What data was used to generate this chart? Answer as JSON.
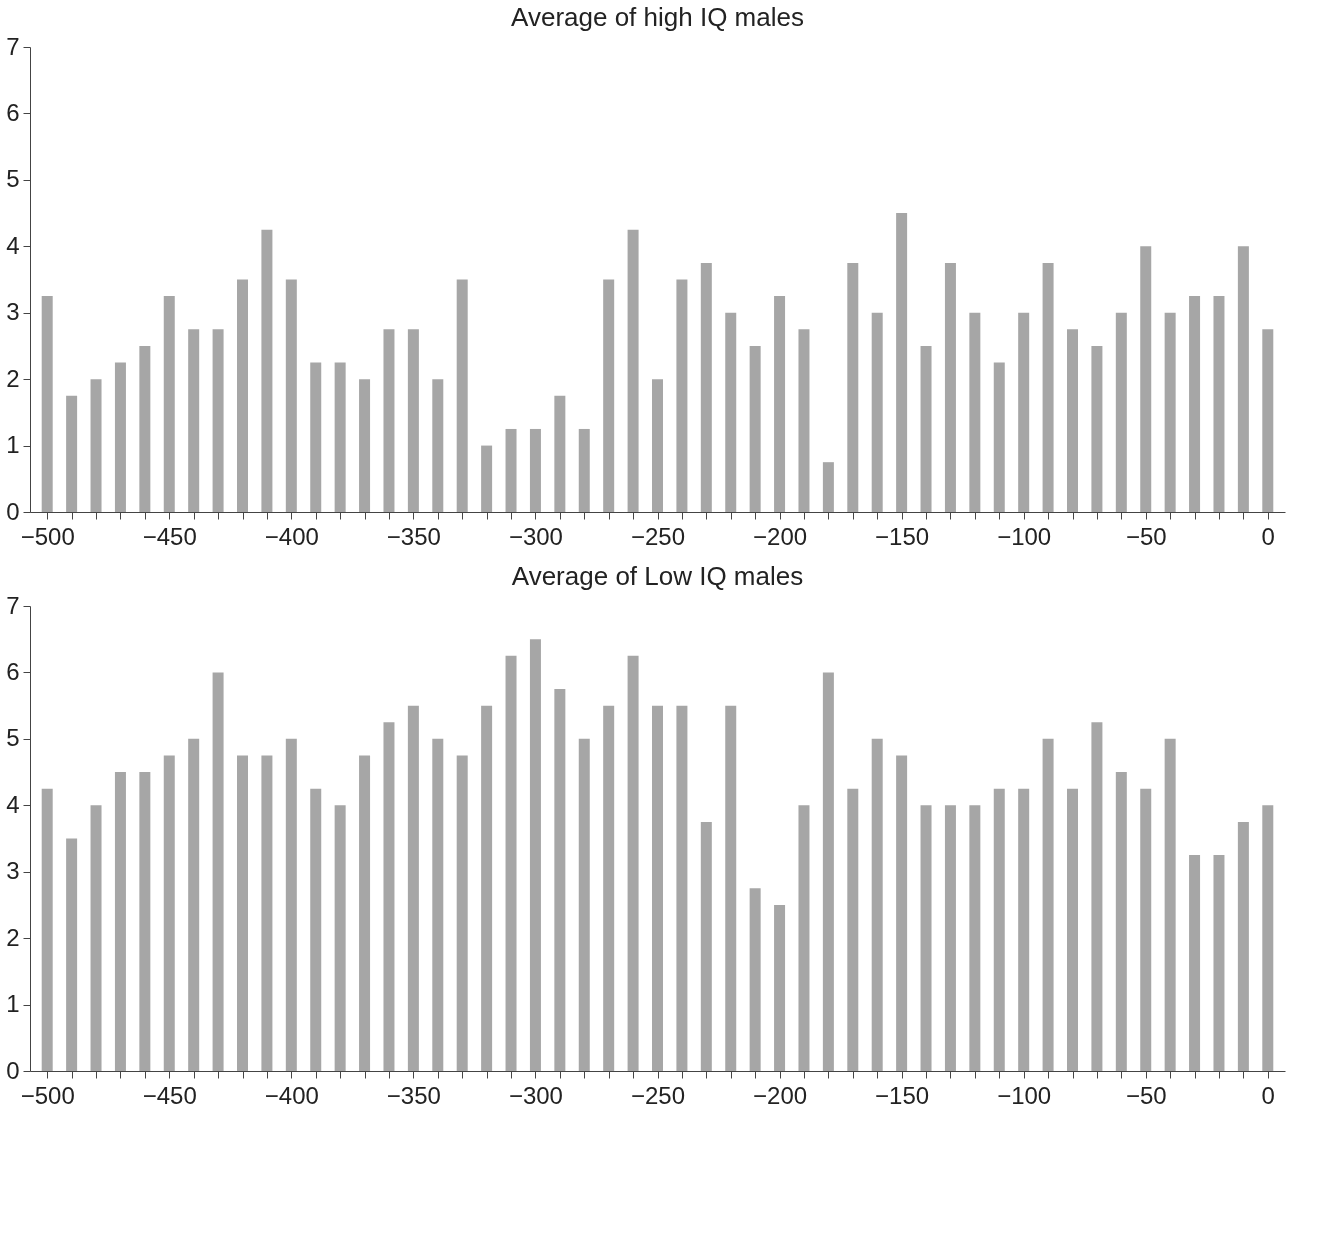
{
  "chart_data": [
    {
      "type": "bar",
      "title": "Average of high IQ males",
      "x": [
        -500,
        -490,
        -480,
        -470,
        -460,
        -450,
        -440,
        -430,
        -420,
        -410,
        -400,
        -390,
        -380,
        -370,
        -360,
        -350,
        -340,
        -330,
        -320,
        -310,
        -300,
        -290,
        -280,
        -270,
        -260,
        -250,
        -240,
        -230,
        -220,
        -210,
        -200,
        -190,
        -180,
        -170,
        -160,
        -150,
        -140,
        -130,
        -120,
        -110,
        -100,
        -90,
        -80,
        -70,
        -60,
        -50,
        -40,
        -30,
        -20,
        -10,
        0
      ],
      "series": [
        {
          "color": "#a6a6a6",
          "values": [
            3.25,
            1.75,
            2,
            2.25,
            2.5,
            3.25,
            2.75,
            2.75,
            3.5,
            4.25,
            3.5,
            2.25,
            2.25,
            2,
            2.75,
            2.75,
            2,
            3.5,
            1,
            1.25,
            1.25,
            1.75,
            1.25,
            3.5,
            4.25,
            2,
            3.5,
            3.75,
            3,
            2.5,
            3.25,
            2.75,
            0.75,
            3.75,
            3,
            4.5,
            2.5,
            3.75,
            3,
            2.25,
            3,
            3.75,
            2.75,
            2.5,
            3,
            4,
            3,
            3.25,
            3.25,
            4,
            2.75
          ]
        }
      ],
      "xlim": [
        -505,
        5
      ],
      "ylim": [
        0,
        7
      ],
      "yticks": [
        0,
        1,
        2,
        3,
        4,
        5,
        6,
        7
      ],
      "xticks": [
        {
          "value": -500,
          "label": "−500"
        },
        {
          "value": -490,
          "label": null
        },
        {
          "value": -480,
          "label": null
        },
        {
          "value": -470,
          "label": null
        },
        {
          "value": -460,
          "label": null
        },
        {
          "value": -450,
          "label": "−450"
        },
        {
          "value": -440,
          "label": null
        },
        {
          "value": -430,
          "label": null
        },
        {
          "value": -420,
          "label": null
        },
        {
          "value": -410,
          "label": null
        },
        {
          "value": -400,
          "label": "−400"
        },
        {
          "value": -390,
          "label": null
        },
        {
          "value": -380,
          "label": null
        },
        {
          "value": -370,
          "label": null
        },
        {
          "value": -360,
          "label": null
        },
        {
          "value": -350,
          "label": "−350"
        },
        {
          "value": -340,
          "label": null
        },
        {
          "value": -330,
          "label": null
        },
        {
          "value": -320,
          "label": null
        },
        {
          "value": -310,
          "label": null
        },
        {
          "value": -300,
          "label": "−300"
        },
        {
          "value": -290,
          "label": null
        },
        {
          "value": -280,
          "label": null
        },
        {
          "value": -270,
          "label": null
        },
        {
          "value": -260,
          "label": null
        },
        {
          "value": -250,
          "label": "−250"
        },
        {
          "value": -240,
          "label": null
        },
        {
          "value": -230,
          "label": null
        },
        {
          "value": -220,
          "label": null
        },
        {
          "value": -210,
          "label": null
        },
        {
          "value": -200,
          "label": "−200"
        },
        {
          "value": -190,
          "label": null
        },
        {
          "value": -180,
          "label": null
        },
        {
          "value": -170,
          "label": null
        },
        {
          "value": -160,
          "label": null
        },
        {
          "value": -150,
          "label": "−150"
        },
        {
          "value": -140,
          "label": null
        },
        {
          "value": -130,
          "label": null
        },
        {
          "value": -120,
          "label": null
        },
        {
          "value": -110,
          "label": null
        },
        {
          "value": -100,
          "label": "−100"
        },
        {
          "value": -90,
          "label": null
        },
        {
          "value": -80,
          "label": null
        },
        {
          "value": -70,
          "label": null
        },
        {
          "value": -60,
          "label": null
        },
        {
          "value": -50,
          "label": "−50"
        },
        {
          "value": -40,
          "label": null
        },
        {
          "value": -30,
          "label": null
        },
        {
          "value": -20,
          "label": null
        },
        {
          "value": -10,
          "label": null
        },
        {
          "value": 0,
          "label": "0"
        }
      ],
      "grid": false,
      "legend": false
    },
    {
      "type": "bar",
      "title": "Average of Low IQ males",
      "x": [
        -500,
        -490,
        -480,
        -470,
        -460,
        -450,
        -440,
        -430,
        -420,
        -410,
        -400,
        -390,
        -380,
        -370,
        -360,
        -350,
        -340,
        -330,
        -320,
        -310,
        -300,
        -290,
        -280,
        -270,
        -260,
        -250,
        -240,
        -230,
        -220,
        -210,
        -200,
        -190,
        -180,
        -170,
        -160,
        -150,
        -140,
        -130,
        -120,
        -110,
        -100,
        -90,
        -80,
        -70,
        -60,
        -50,
        -40,
        -30,
        -20,
        -10,
        0
      ],
      "series": [
        {
          "color": "#a6a6a6",
          "values": [
            4.25,
            3.5,
            4,
            4.5,
            4.5,
            4.75,
            5,
            6,
            4.75,
            4.75,
            5,
            4.25,
            4,
            4.75,
            5.25,
            5.5,
            5,
            4.75,
            5.5,
            6.25,
            6.5,
            5.75,
            5,
            5.5,
            6.25,
            5.5,
            5.5,
            3.75,
            5.5,
            2.75,
            2.5,
            4,
            6,
            4.25,
            5,
            4.75,
            4,
            4,
            4,
            4.25,
            4.25,
            5,
            4.25,
            5.25,
            4.5,
            4.25,
            5,
            3.25,
            3.25,
            3.75,
            4
          ]
        }
      ],
      "xlim": [
        -505,
        5
      ],
      "ylim": [
        0,
        7
      ],
      "yticks": [
        0,
        1,
        2,
        3,
        4,
        5,
        6,
        7
      ],
      "xticks": [
        {
          "value": -500,
          "label": "−500"
        },
        {
          "value": -490,
          "label": null
        },
        {
          "value": -480,
          "label": null
        },
        {
          "value": -470,
          "label": null
        },
        {
          "value": -460,
          "label": null
        },
        {
          "value": -450,
          "label": "−450"
        },
        {
          "value": -440,
          "label": null
        },
        {
          "value": -430,
          "label": null
        },
        {
          "value": -420,
          "label": null
        },
        {
          "value": -410,
          "label": null
        },
        {
          "value": -400,
          "label": "−400"
        },
        {
          "value": -390,
          "label": null
        },
        {
          "value": -380,
          "label": null
        },
        {
          "value": -370,
          "label": null
        },
        {
          "value": -360,
          "label": null
        },
        {
          "value": -350,
          "label": "−350"
        },
        {
          "value": -340,
          "label": null
        },
        {
          "value": -330,
          "label": null
        },
        {
          "value": -320,
          "label": null
        },
        {
          "value": -310,
          "label": null
        },
        {
          "value": -300,
          "label": "−300"
        },
        {
          "value": -290,
          "label": null
        },
        {
          "value": -280,
          "label": null
        },
        {
          "value": -270,
          "label": null
        },
        {
          "value": -260,
          "label": null
        },
        {
          "value": -250,
          "label": "−250"
        },
        {
          "value": -240,
          "label": null
        },
        {
          "value": -230,
          "label": null
        },
        {
          "value": -220,
          "label": null
        },
        {
          "value": -210,
          "label": null
        },
        {
          "value": -200,
          "label": "−200"
        },
        {
          "value": -190,
          "label": null
        },
        {
          "value": -180,
          "label": null
        },
        {
          "value": -170,
          "label": null
        },
        {
          "value": -160,
          "label": null
        },
        {
          "value": -150,
          "label": "−150"
        },
        {
          "value": -140,
          "label": null
        },
        {
          "value": -130,
          "label": null
        },
        {
          "value": -120,
          "label": null
        },
        {
          "value": -110,
          "label": null
        },
        {
          "value": -100,
          "label": "−100"
        },
        {
          "value": -90,
          "label": null
        },
        {
          "value": -80,
          "label": null
        },
        {
          "value": -70,
          "label": null
        },
        {
          "value": -60,
          "label": null
        },
        {
          "value": -50,
          "label": "−50"
        },
        {
          "value": -40,
          "label": null
        },
        {
          "value": -30,
          "label": null
        },
        {
          "value": -20,
          "label": null
        },
        {
          "value": -10,
          "label": null
        },
        {
          "value": 0,
          "label": "0"
        }
      ],
      "grid": false,
      "legend": false
    }
  ]
}
